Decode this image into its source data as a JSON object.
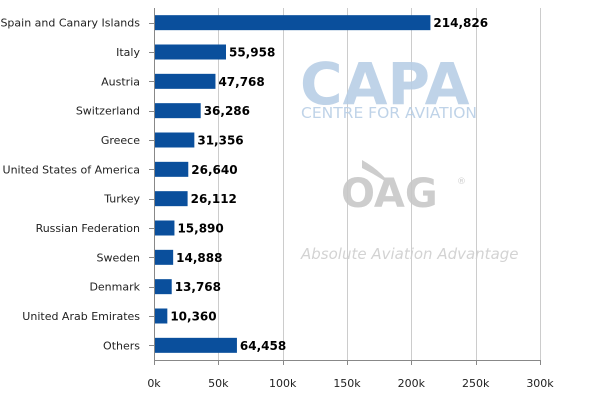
{
  "chart_data": {
    "type": "bar",
    "orientation": "horizontal",
    "title": "",
    "xlabel": "",
    "ylabel": "",
    "categories": [
      "Spain and Canary Islands",
      "Italy",
      "Austria",
      "Switzerland",
      "Greece",
      "United States of America",
      "Turkey",
      "Russian Federation",
      "Sweden",
      "Denmark",
      "United Arab Emirates",
      "Others"
    ],
    "values": [
      214826,
      55958,
      47768,
      36286,
      31356,
      26640,
      26112,
      15890,
      14888,
      13768,
      10360,
      64458
    ],
    "value_labels": [
      "214,826",
      "55,958",
      "47,768",
      "36,286",
      "31,356",
      "26,640",
      "26,112",
      "15,890",
      "14,888",
      "13,768",
      "10,360",
      "64,458"
    ],
    "xlim": [
      0,
      300000
    ],
    "xticks": [
      0,
      50000,
      100000,
      150000,
      200000,
      250000,
      300000
    ],
    "xtick_labels": [
      "0k",
      "50k",
      "100k",
      "150k",
      "200k",
      "250k",
      "300k"
    ],
    "grid": true,
    "legend": "none",
    "bar_color": "#0a4f9c"
  },
  "watermarks": {
    "capa_logo": "CAPA",
    "capa_subtitle": "CENTRE FOR AVIATION",
    "oag_logo": "OAG",
    "oag_tagline": "Absolute Aviation Advantage"
  },
  "colors": {
    "grid": "#cccccc",
    "axis": "#888888",
    "capa": "#b9cfe6",
    "oag": "#c8c8c8"
  }
}
